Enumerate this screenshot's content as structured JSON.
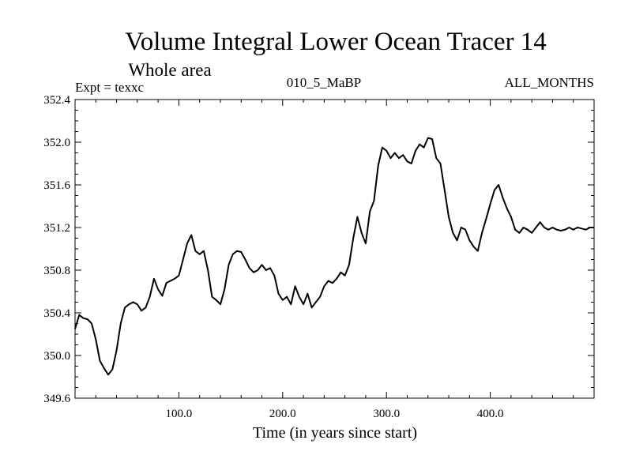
{
  "chart_data": {
    "type": "line",
    "title": "Volume Integral Lower Ocean Tracer 14",
    "subtitle": "Whole area",
    "annotations": {
      "left": "Expt = texxc",
      "center": "010_5_MaBP",
      "right": "ALL_MONTHS"
    },
    "xlabel": "Time (in years since start)",
    "ylabel": "",
    "xlim": [
      0,
      500
    ],
    "ylim": [
      349.6,
      352.4
    ],
    "xticks": [
      100,
      200,
      300,
      400
    ],
    "xtick_labels": [
      "100.0",
      "200.0",
      "300.0",
      "400.0"
    ],
    "yticks": [
      349.6,
      350.0,
      350.4,
      350.8,
      351.2,
      351.6,
      352.0,
      352.4
    ],
    "ytick_labels": [
      "349.6",
      "350.0",
      "350.4",
      "350.8",
      "351.2",
      "351.6",
      "352.0",
      "352.4"
    ],
    "grid": false,
    "series": [
      {
        "name": "Tracer 14",
        "color": "#000000",
        "x": [
          0,
          4,
          8,
          12,
          16,
          20,
          24,
          28,
          32,
          36,
          40,
          44,
          48,
          52,
          56,
          60,
          64,
          68,
          72,
          76,
          80,
          84,
          88,
          92,
          96,
          100,
          104,
          108,
          112,
          116,
          120,
          124,
          128,
          132,
          136,
          140,
          144,
          148,
          152,
          156,
          160,
          164,
          168,
          172,
          176,
          180,
          184,
          188,
          192,
          196,
          200,
          204,
          208,
          212,
          216,
          220,
          224,
          228,
          232,
          236,
          240,
          244,
          248,
          252,
          256,
          260,
          264,
          268,
          272,
          276,
          280,
          284,
          288,
          292,
          296,
          300,
          304,
          308,
          312,
          316,
          320,
          324,
          328,
          332,
          336,
          340,
          344,
          348,
          352,
          356,
          360,
          364,
          368,
          372,
          376,
          380,
          384,
          388,
          392,
          396,
          400,
          404,
          408,
          412,
          416,
          420,
          424,
          428,
          432,
          436,
          440,
          444,
          448,
          452,
          456,
          460,
          464,
          468,
          472,
          476,
          480,
          484,
          488,
          492,
          496,
          500
        ],
        "y": [
          350.25,
          350.38,
          350.35,
          350.34,
          350.3,
          350.15,
          349.95,
          349.88,
          349.82,
          349.87,
          350.05,
          350.3,
          350.45,
          350.48,
          350.5,
          350.48,
          350.42,
          350.45,
          350.55,
          350.72,
          350.62,
          350.56,
          350.68,
          350.7,
          350.72,
          350.75,
          350.9,
          351.05,
          351.13,
          350.98,
          350.95,
          350.98,
          350.8,
          350.55,
          350.52,
          350.48,
          350.62,
          350.85,
          350.95,
          350.98,
          350.97,
          350.9,
          350.82,
          350.78,
          350.8,
          350.85,
          350.8,
          350.82,
          350.75,
          350.58,
          350.52,
          350.55,
          350.48,
          350.65,
          350.55,
          350.48,
          350.58,
          350.45,
          350.5,
          350.55,
          350.65,
          350.7,
          350.68,
          350.72,
          350.78,
          350.75,
          350.85,
          351.1,
          351.3,
          351.15,
          351.05,
          351.35,
          351.45,
          351.78,
          351.95,
          351.92,
          351.85,
          351.9,
          351.85,
          351.88,
          351.82,
          351.8,
          351.92,
          351.98,
          351.95,
          352.04,
          352.03,
          351.85,
          351.8,
          351.55,
          351.3,
          351.15,
          351.08,
          351.2,
          351.18,
          351.08,
          351.02,
          350.98,
          351.15,
          351.28,
          351.42,
          351.55,
          351.6,
          351.48,
          351.38,
          351.3,
          351.18,
          351.15,
          351.2,
          351.18,
          351.15,
          351.2,
          351.25,
          351.2,
          351.18,
          351.2,
          351.18,
          351.17,
          351.18,
          351.2,
          351.18,
          351.2,
          351.19,
          351.18,
          351.2,
          351.2
        ]
      }
    ]
  }
}
